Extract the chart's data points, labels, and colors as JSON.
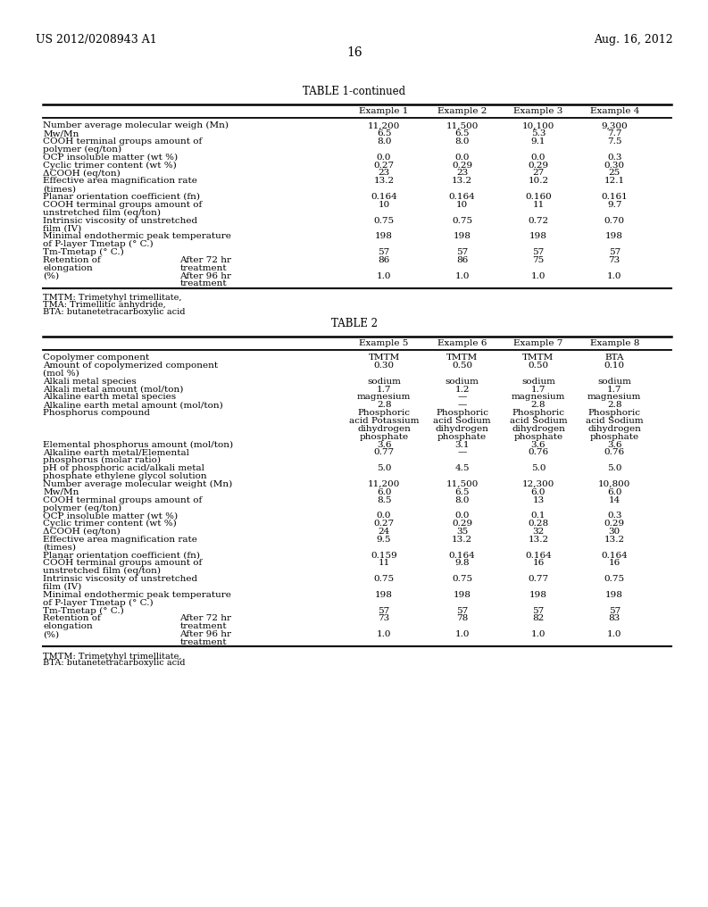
{
  "page_header_left": "US 2012/0208943 A1",
  "page_header_right": "Aug. 16, 2012",
  "page_number": "16",
  "table1_title": "TABLE 1-continued",
  "table1_footnotes": [
    "TMTM: Trimetyhyl trimellitate,",
    "TMA: Trimellitic anhydride,",
    "BTA: butanetetracarboxylic acid"
  ],
  "table2_title": "TABLE 2",
  "table2_footnotes": [
    "TMTM: Trimetyhyl trimellitate,",
    "BTA: butanetetracarboxylic acid"
  ],
  "bg_color": "#ffffff",
  "text_color": "#000000"
}
